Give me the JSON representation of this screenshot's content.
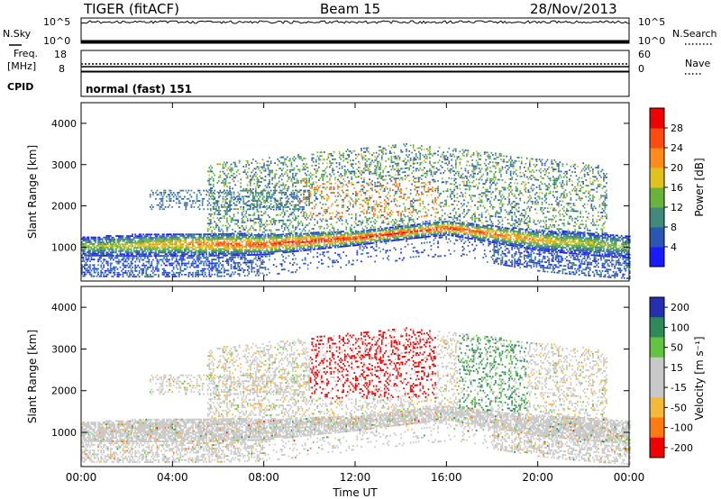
{
  "header": {
    "station": "TIGER (fitACF)",
    "beam": "Beam 15",
    "date": "28/Nov/2013"
  },
  "noise_panel": {
    "left_label": "N.Sky",
    "right_label": "N.Search",
    "left_ticks": [
      "10^5",
      "10^0"
    ],
    "right_ticks": [
      "10^5",
      "10^0"
    ]
  },
  "freq_panel": {
    "left_label_1": "Freq.",
    "left_label_2": "[MHz]",
    "right_label": "Nave",
    "left_ticks": [
      "18",
      "8"
    ],
    "right_ticks": [
      "60",
      "0"
    ]
  },
  "cpid_panel": {
    "label": "CPID",
    "value": "normal (fast) 151"
  },
  "chart_data": [
    {
      "type": "heatmap",
      "title": "",
      "xlabel": "",
      "ylabel": "Slant Range [km]",
      "x_ticks": [
        "00:00",
        "04:00",
        "08:00",
        "12:00",
        "16:00",
        "20:00",
        "00:00"
      ],
      "xlim": [
        0,
        24
      ],
      "ylim": [
        180,
        4500
      ],
      "y_ticks": [
        1000,
        2000,
        3000,
        4000
      ],
      "colorbar": {
        "label": "Power [dB]",
        "ticks": [
          4,
          8,
          12,
          16,
          20,
          24,
          28
        ],
        "range": [
          0,
          32
        ],
        "colors": [
          "#1a1aff",
          "#2b57b3",
          "#3f8a7a",
          "#69b33c",
          "#e0c21c",
          "#ff8c1a",
          "#ff4a10",
          "#f00000"
        ]
      },
      "main_echo_band_center_km": [
        [
          0,
          1000
        ],
        [
          4,
          1050
        ],
        [
          8,
          1050
        ],
        [
          12,
          1200
        ],
        [
          16,
          1450
        ],
        [
          20,
          1150
        ],
        [
          24,
          1000
        ]
      ]
    },
    {
      "type": "heatmap",
      "title": "",
      "xlabel": "Time UT",
      "ylabel": "Slant Range [km]",
      "x_ticks": [
        "00:00",
        "04:00",
        "08:00",
        "12:00",
        "16:00",
        "20:00",
        "00:00"
      ],
      "xlim": [
        0,
        24
      ],
      "ylim": [
        180,
        4500
      ],
      "y_ticks": [
        1000,
        2000,
        3000,
        4000
      ],
      "colorbar": {
        "label": "Velocity [m s⁻¹]",
        "ticks": [
          200,
          100,
          50,
          15,
          -15,
          -50,
          -100,
          -200
        ],
        "colors": [
          "#2330b0",
          "#2f8a5a",
          "#63c442",
          "#c8c8c8",
          "#c8c8c8",
          "#f4b93a",
          "#ff7a10",
          "#f00000"
        ]
      },
      "ground_scatter_color": "#c8c8c8"
    }
  ]
}
